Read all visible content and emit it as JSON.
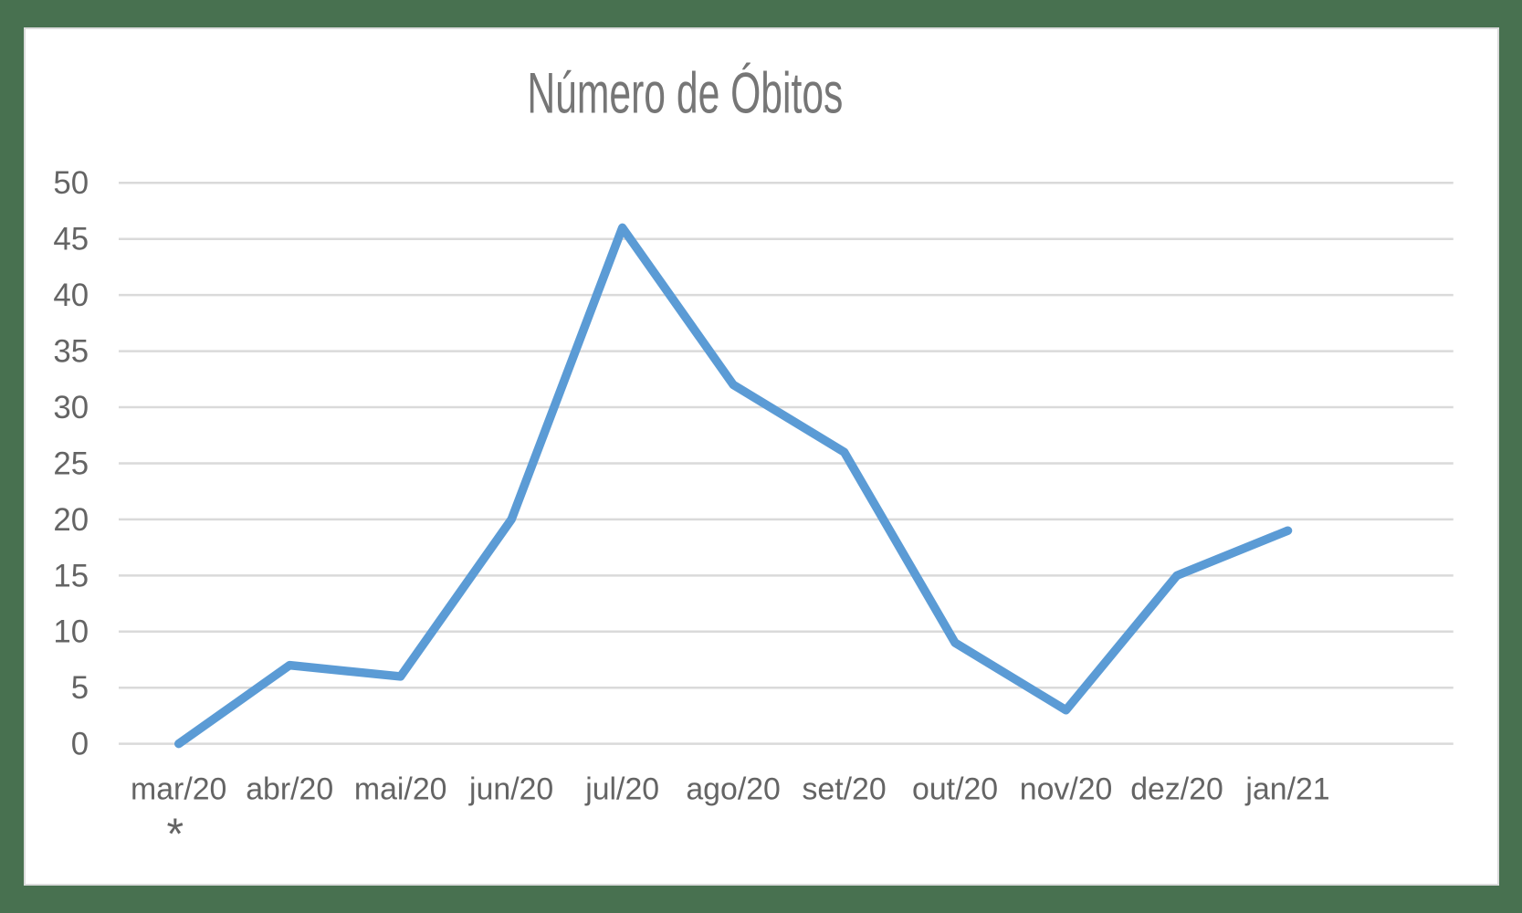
{
  "frame": {
    "background_color": "#487150",
    "chart_background": "#ffffff",
    "chart_border_color": "#dcdcdc"
  },
  "chart_data": {
    "type": "line",
    "title": "Número de Óbitos",
    "categories": [
      "mar/20",
      "abr/20",
      "mai/20",
      "jun/20",
      "jul/20",
      "ago/20",
      "set/20",
      "out/20",
      "nov/20",
      "dez/20",
      "jan/21"
    ],
    "values": [
      0,
      7,
      6,
      20,
      46,
      32,
      26,
      9,
      3,
      15,
      19
    ],
    "footnote_marker": "*",
    "footnote_category": "mar/20",
    "xlabel": "",
    "ylabel": "",
    "y_ticks": [
      0,
      5,
      10,
      15,
      20,
      25,
      30,
      35,
      40,
      45,
      50
    ],
    "ylim": [
      0,
      50
    ],
    "grid": "horizontal",
    "legend_position": "none",
    "line_color": "#5B9BD5",
    "gridline_color": "#dadada",
    "tick_label_color": "#646464",
    "title_color": "#767676"
  }
}
